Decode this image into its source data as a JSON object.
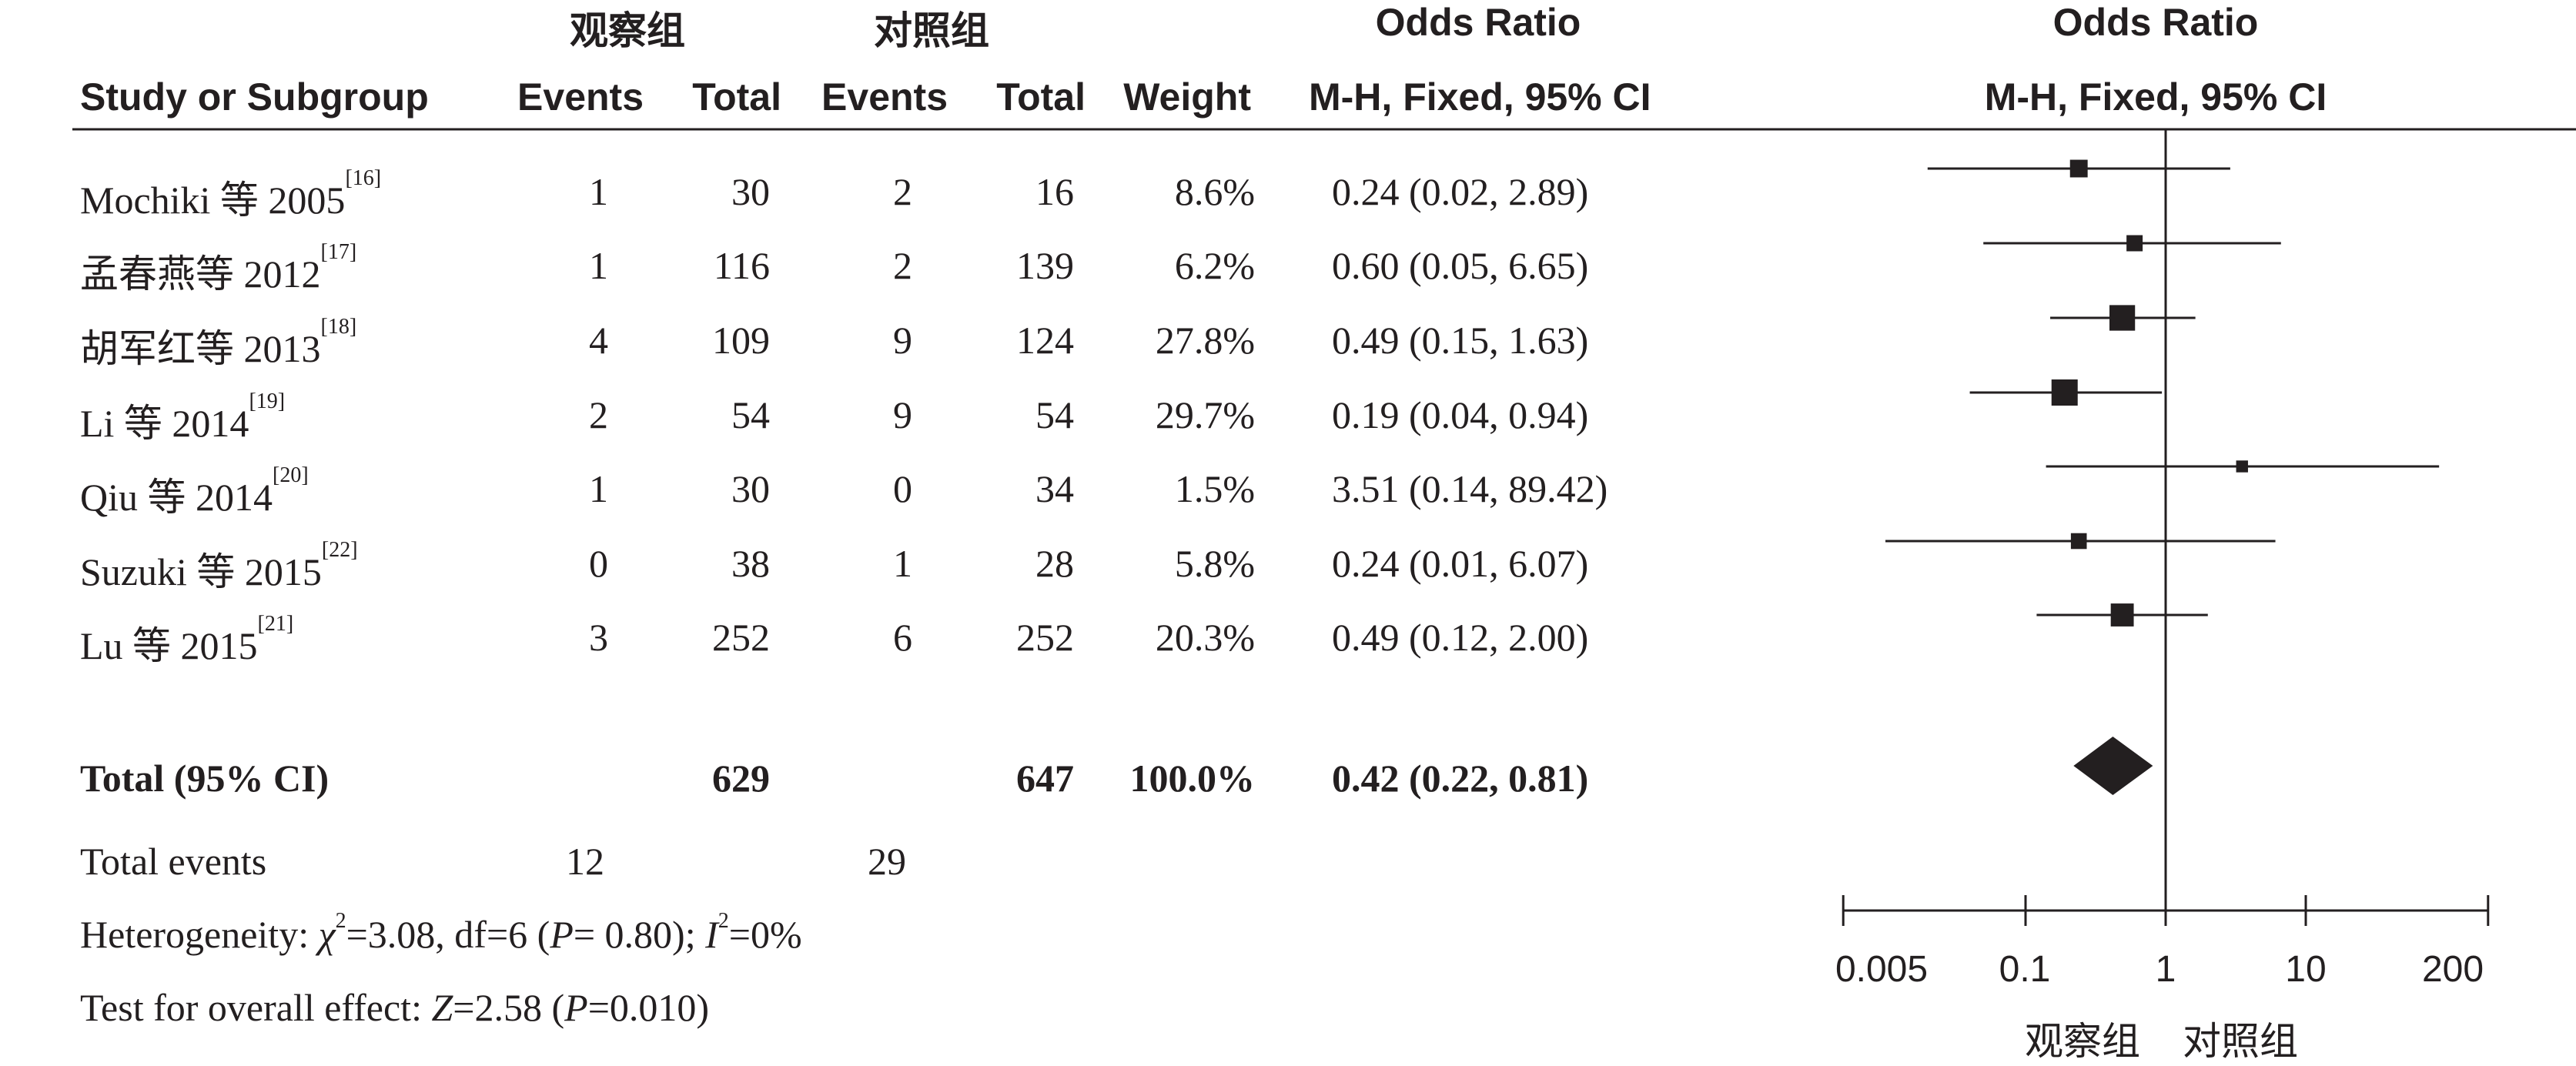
{
  "header": {
    "group1": "观察组",
    "group2": "对照组",
    "or_title_table": "Odds Ratio",
    "or_title_plot": "Odds Ratio",
    "study_col": "Study or Subgroup",
    "events1": "Events",
    "total1": "Total",
    "events2": "Events",
    "total2": "Total",
    "weight": "Weight",
    "method_table": "M-H, Fixed, 95% CI",
    "method_plot": "M-H, Fixed, 95% CI"
  },
  "studies": [
    {
      "name": "Mochiki 等 2005",
      "ref": "[16]",
      "e1": "1",
      "t1": "30",
      "e2": "2",
      "t2": "16",
      "weight": "8.6%",
      "ci_text": "0.24 (0.02, 2.89)"
    },
    {
      "name": "孟春燕等 2012",
      "ref": "[17]",
      "e1": "1",
      "t1": "116",
      "e2": "2",
      "t2": "139",
      "weight": "6.2%",
      "ci_text": "0.60 (0.05, 6.65)"
    },
    {
      "name": "胡军红等 2013",
      "ref": "[18]",
      "e1": "4",
      "t1": "109",
      "e2": "9",
      "t2": "124",
      "weight": "27.8%",
      "ci_text": "0.49 (0.15, 1.63)"
    },
    {
      "name": "Li 等 2014",
      "ref": "[19]",
      "e1": "2",
      "t1": "54",
      "e2": "9",
      "t2": "54",
      "weight": "29.7%",
      "ci_text": "0.19 (0.04, 0.94)"
    },
    {
      "name": "Qiu 等 2014",
      "ref": "[20]",
      "e1": "1",
      "t1": "30",
      "e2": "0",
      "t2": "34",
      "weight": "1.5%",
      "ci_text": "3.51 (0.14, 89.42)"
    },
    {
      "name": "Suzuki 等 2015",
      "ref": "[22]",
      "e1": "0",
      "t1": "38",
      "e2": "1",
      "t2": "28",
      "weight": "5.8%",
      "ci_text": "0.24 (0.01, 6.07)"
    },
    {
      "name": "Lu 等 2015",
      "ref": "[21]",
      "e1": "3",
      "t1": "252",
      "e2": "6",
      "t2": "252",
      "weight": "20.3%",
      "ci_text": "0.49 (0.12, 2.00)"
    }
  ],
  "total": {
    "label": "Total (95% CI)",
    "t1": "629",
    "t2": "647",
    "weight": "100.0%",
    "ci_text": "0.42 (0.22, 0.81)"
  },
  "total_events": {
    "label": "Total events",
    "e1": "12",
    "e2": "29"
  },
  "heterogeneity": {
    "prefix": "Heterogeneity: ",
    "chi": "χ",
    "chi_sup": "2",
    "mid": "=3.08, df=6 (",
    "p": "P",
    "p_val": "= 0.80); ",
    "i": "I",
    "i_sup": "2",
    "i_val": "=0%"
  },
  "overall": {
    "prefix": "Test for overall effect: ",
    "z": "Z",
    "z_val": "=2.58 (",
    "p": "P",
    "p_val": "=0.010)"
  },
  "axis": {
    "ticks": [
      0.005,
      0.1,
      1,
      10,
      200
    ],
    "tick_labels": [
      "0.005",
      "0.1",
      "1",
      "10",
      "200"
    ],
    "favours_left": "观察组",
    "favours_right": "对照组"
  },
  "chart_data": {
    "type": "forest",
    "x_scale": "log",
    "xlim": [
      0.005,
      200
    ],
    "reference_line": 1,
    "studies": [
      {
        "name": "Mochiki 等 2005",
        "or": 0.24,
        "lo": 0.02,
        "hi": 2.89,
        "weight": 8.6
      },
      {
        "name": "孟春燕等 2012",
        "or": 0.6,
        "lo": 0.05,
        "hi": 6.65,
        "weight": 6.2
      },
      {
        "name": "胡军红等 2013",
        "or": 0.49,
        "lo": 0.15,
        "hi": 1.63,
        "weight": 27.8
      },
      {
        "name": "Li 等 2014",
        "or": 0.19,
        "lo": 0.04,
        "hi": 0.94,
        "weight": 29.7
      },
      {
        "name": "Qiu 等 2014",
        "or": 3.51,
        "lo": 0.14,
        "hi": 89.42,
        "weight": 1.5
      },
      {
        "name": "Suzuki 等 2015",
        "or": 0.24,
        "lo": 0.01,
        "hi": 6.07,
        "weight": 5.8
      },
      {
        "name": "Lu 等 2015",
        "or": 0.49,
        "lo": 0.12,
        "hi": 2.0,
        "weight": 20.3
      }
    ],
    "pooled": {
      "or": 0.42,
      "lo": 0.22,
      "hi": 0.81
    },
    "colors": {
      "ink": "#231f20"
    }
  }
}
